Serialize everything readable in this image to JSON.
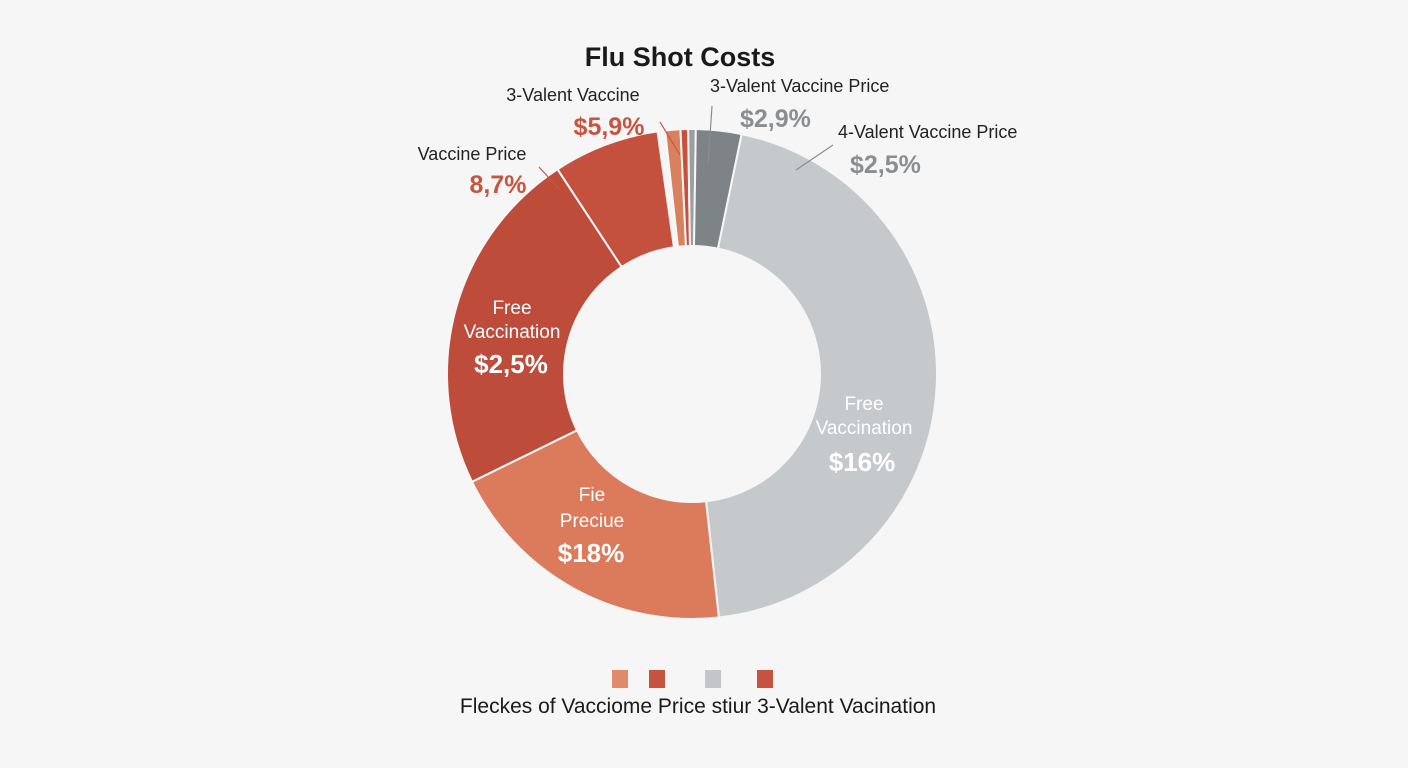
{
  "chart_data": {
    "type": "pie",
    "title": "Flu Shot Costs",
    "slices": [
      {
        "label": "3-Valent Vaccine",
        "value_label": "$5,9%",
        "fraction": 0.01,
        "color": "#d9805f",
        "label_color": "#c8553f"
      },
      {
        "label": "",
        "value_label": "",
        "fraction": 0.005,
        "color": "#c8503d",
        "label_color": "#c8503d"
      },
      {
        "label": "",
        "value_label": "",
        "fraction": 0.005,
        "color": "#9a9fa2",
        "label_color": "#9a9fa2"
      },
      {
        "label": "3-Valent Vaccine Price",
        "value_label": "$2,9%",
        "fraction": 0.03,
        "color": "#7e8387",
        "label_color": "#8a8e92"
      },
      {
        "label": "4-Valent Vaccine Price",
        "value_label": "$2,5%",
        "fraction": 0.0,
        "color": "#c2c6c9",
        "label_color": "#8a8e92"
      },
      {
        "label": "Free Vaccination",
        "value_label": "$16%",
        "fraction": 0.45,
        "color": "#c6c9cc",
        "label_color": "#ffffff"
      },
      {
        "label": "Fie Preciue",
        "value_label": "$18%",
        "fraction": 0.195,
        "color": "#dc7a5c",
        "label_color": "#ffffff"
      },
      {
        "label": "Free Vaccination",
        "value_label": "$2,5%",
        "fraction": 0.23,
        "color": "#be4c3b",
        "label_color": "#ffffff"
      },
      {
        "label": "Vaccine Price",
        "value_label": "8,7%",
        "fraction": 0.07,
        "color": "#c4513e",
        "label_color": "#c8553f"
      }
    ],
    "legend": {
      "placement": "bottom",
      "swatches": [
        "#e08a6c",
        "#c65341",
        "#c2c6c9",
        "#c65341"
      ],
      "text": "Fleckes  of Vacciome Price stiur 3-Valent Vacination"
    }
  }
}
